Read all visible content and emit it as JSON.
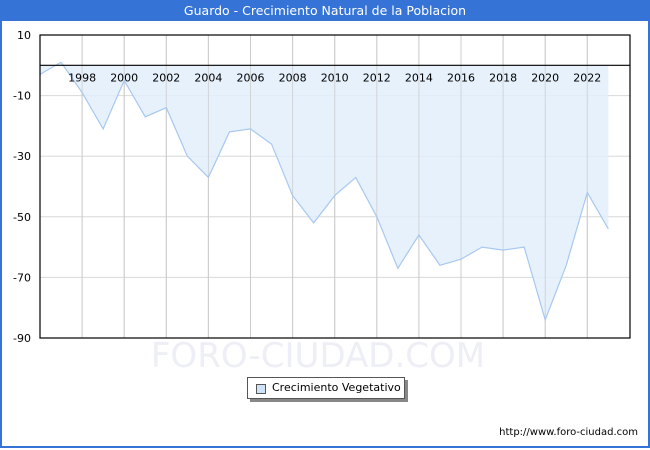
{
  "title": "Guardo - Crecimiento Natural de la Poblacion",
  "legend": {
    "label": "Crecimiento Vegetativo",
    "swatch_color": "#cfe3f8"
  },
  "watermark": "FORO-CIUDAD.COM",
  "footer": {
    "url": "http://www.foro-ciudad.com"
  },
  "colors": {
    "titlebar": "#3574d6",
    "line": "#a8c8f0",
    "fill": "#e2effc",
    "grid": "#d8d8d8"
  },
  "chart_data": {
    "type": "area",
    "title": "Guardo - Crecimiento Natural de la Poblacion",
    "xlabel": "",
    "ylabel": "",
    "ylim": [
      -90,
      10
    ],
    "yticks": [
      10,
      -10,
      -30,
      -50,
      -70,
      -90
    ],
    "xticks": [
      1998,
      2000,
      2002,
      2004,
      2006,
      2008,
      2010,
      2012,
      2014,
      2016,
      2018,
      2020,
      2022
    ],
    "grid": true,
    "legend_position": "bottom",
    "x": [
      1996,
      1997,
      1998,
      1999,
      2000,
      2001,
      2002,
      2003,
      2004,
      2005,
      2006,
      2007,
      2008,
      2009,
      2010,
      2011,
      2012,
      2013,
      2014,
      2015,
      2016,
      2017,
      2018,
      2019,
      2020,
      2021,
      2022,
      2023
    ],
    "series": [
      {
        "name": "Crecimiento Vegetativo",
        "values": [
          -3,
          1,
          -9,
          -21,
          -5,
          -17,
          -14,
          -30,
          -37,
          -22,
          -21,
          -26,
          -43,
          -52,
          -43,
          -37,
          -50,
          -67,
          -56,
          -66,
          -64,
          -60,
          -61,
          -60,
          -84,
          -66,
          -42,
          -54
        ]
      }
    ]
  }
}
